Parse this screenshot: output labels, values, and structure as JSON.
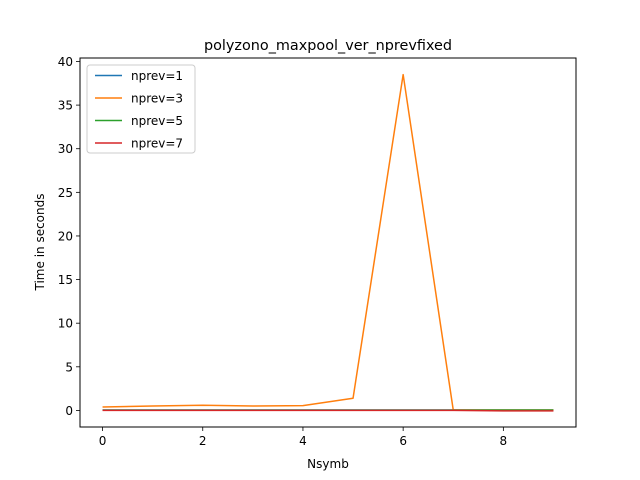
{
  "chart_data": {
    "type": "line",
    "title": "polyzono_maxpool_ver_nprevfixed",
    "xlabel": "Nsymb",
    "ylabel": "Time in seconds",
    "xlim": [
      -0.45,
      9.45
    ],
    "ylim": [
      -1.9,
      40.4
    ],
    "xticks": [
      0,
      2,
      4,
      6,
      8
    ],
    "yticks": [
      0,
      5,
      10,
      15,
      20,
      25,
      30,
      35,
      40
    ],
    "grid": false,
    "legend_position": "top-left",
    "x": [
      0,
      1,
      2,
      3,
      4,
      5,
      6,
      7,
      8,
      9
    ],
    "series": [
      {
        "name": "nprev=1",
        "color": "#1f77b4",
        "values": [
          0.05,
          0.05,
          0.05,
          0.05,
          0.05,
          0.05,
          0.05,
          0.05,
          0.05,
          0.05
        ]
      },
      {
        "name": "nprev=3",
        "color": "#ff7f0e",
        "values": [
          0.4,
          0.5,
          0.6,
          0.5,
          0.55,
          1.4,
          38.5,
          0.05,
          0.05,
          0.05
        ]
      },
      {
        "name": "nprev=5",
        "color": "#2ca02c",
        "values": [
          0.03,
          0.03,
          0.03,
          0.03,
          0.03,
          0.03,
          0.03,
          0.03,
          0.03,
          0.03
        ]
      },
      {
        "name": "nprev=7",
        "color": "#d62728",
        "values": [
          0.0,
          0.0,
          0.0,
          0.0,
          0.0,
          0.0,
          0.0,
          0.0,
          -0.05,
          -0.05
        ]
      }
    ]
  }
}
